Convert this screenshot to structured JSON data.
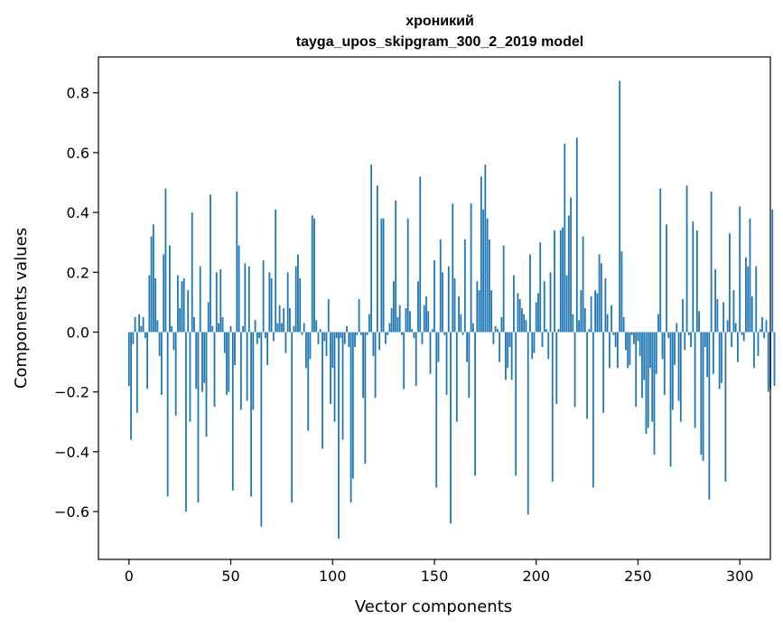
{
  "chart_data": {
    "type": "bar",
    "title": "хроникий",
    "subtitle": "tayga_upos_skipgram_300_2_2019 model",
    "xlabel": "Vector components",
    "ylabel": "Components values",
    "xlim": [
      -15,
      315
    ],
    "ylim": [
      -0.76,
      0.92
    ],
    "xticks": [
      0,
      50,
      100,
      150,
      200,
      250,
      300
    ],
    "xtick_labels": [
      "0",
      "50",
      "100",
      "150",
      "200",
      "250",
      "300"
    ],
    "yticks": [
      -0.6,
      -0.4,
      -0.2,
      0.0,
      0.2,
      0.4,
      0.6,
      0.8
    ],
    "ytick_labels": [
      "−0.6",
      "−0.4",
      "−0.2",
      "0.0",
      "0.2",
      "0.4",
      "0.6",
      "0.8"
    ],
    "grid": false,
    "bar_color": "#1f77b4",
    "values": [
      -0.18,
      -0.36,
      -0.04,
      0.05,
      -0.27,
      0.06,
      0.02,
      0.05,
      -0.02,
      -0.19,
      0.19,
      0.32,
      0.36,
      0.18,
      0.04,
      -0.08,
      -0.21,
      0.26,
      0.48,
      -0.55,
      0.29,
      0.02,
      -0.06,
      -0.28,
      0.19,
      0.08,
      0.17,
      0.18,
      -0.6,
      0.14,
      -0.3,
      0.4,
      0.05,
      -0.19,
      -0.57,
      0.22,
      -0.2,
      -0.17,
      -0.35,
      0.1,
      0.46,
      0.02,
      -0.25,
      0.2,
      0.03,
      0.21,
      0.05,
      -0.07,
      -0.21,
      -0.2,
      0.02,
      -0.53,
      -0.11,
      0.47,
      0.29,
      -0.26,
      0.02,
      0.23,
      -0.23,
      0.22,
      -0.55,
      -0.26,
      0.04,
      -0.04,
      -0.02,
      -0.65,
      0.24,
      -0.02,
      -0.11,
      0.2,
      0.18,
      -0.03,
      0.41,
      0.03,
      0.09,
      0.03,
      0.08,
      -0.07,
      0.2,
      0.08,
      -0.57,
      0.02,
      0.22,
      0.26,
      0.18,
      -0.01,
      0.03,
      -0.12,
      -0.33,
      -0.09,
      0.39,
      0.38,
      0.04,
      -0.04,
      0.01,
      -0.39,
      -0.03,
      -0.08,
      0.11,
      -0.24,
      -0.12,
      -0.3,
      -0.02,
      -0.69,
      -0.02,
      -0.36,
      -0.04,
      0.02,
      -0.05,
      -0.57,
      -0.49,
      -0.05,
      -0.01,
      0.11,
      -0.01,
      -0.22,
      -0.44,
      -0.01,
      0.06,
      0.56,
      -0.08,
      -0.22,
      0.49,
      -0.06,
      0.38,
      0.38,
      -0.04,
      -0.01,
      0.03,
      0.08,
      0.17,
      0.44,
      0.05,
      0.09,
      -0.01,
      -0.19,
      0.08,
      0.38,
      0.07,
      0.01,
      -0.02,
      -0.18,
      0.17,
      0.52,
      -0.04,
      0.09,
      0.12,
      0.07,
      -0.14,
      0.01,
      0.24,
      -0.52,
      -0.1,
      0.31,
      0.2,
      -0.01,
      -0.21,
      0.22,
      -0.64,
      0.43,
      0.18,
      -0.3,
      0.12,
      0.06,
      -0.01,
      0.31,
      -0.1,
      -0.22,
      0.43,
      0.03,
      -0.48,
      0.17,
      0.14,
      0.52,
      0.41,
      0.56,
      0.38,
      0.31,
      0.14,
      -0.04,
      0.02,
      0.01,
      -0.1,
      0.05,
      0.29,
      -0.16,
      -0.12,
      -0.05,
      -0.16,
      0.19,
      -0.48,
      0.13,
      0.11,
      0.08,
      0.06,
      0.04,
      -0.61,
      0.26,
      -0.09,
      -0.07,
      0.1,
      0.13,
      0.3,
      -0.05,
      0.17,
      0.01,
      -0.09,
      0.2,
      -0.5,
      0.34,
      -0.24,
      0.01,
      0.34,
      0.35,
      0.63,
      0.19,
      0.39,
      0.45,
      0.06,
      -0.25,
      0.65,
      0.04,
      0.14,
      0.32,
      0.08,
      -0.29,
      0.01,
      0.12,
      -0.52,
      0.14,
      0.13,
      0.26,
      0.23,
      -0.27,
      0.18,
      0.06,
      -0.12,
      0.09,
      -0.01,
      -0.05,
      -0.12,
      0.84,
      0.27,
      0.05,
      -0.06,
      -0.12,
      -0.11,
      -0.01,
      -0.04,
      -0.25,
      -0.03,
      -0.08,
      -0.22,
      -0.16,
      -0.34,
      -0.32,
      -0.12,
      -0.3,
      -0.41,
      -0.14,
      0.06,
      0.48,
      -0.09,
      -0.21,
      0.36,
      -0.02,
      -0.45,
      -0.26,
      -0.11,
      0.03,
      -0.23,
      -0.3,
      0.11,
      -0.06,
      0.49,
      -0.01,
      -0.05,
      0.37,
      -0.32,
      0.34,
      0.07,
      -0.41,
      -0.43,
      -0.05,
      -0.15,
      -0.56,
      0.47,
      -0.14,
      0.21,
      0.11,
      -0.19,
      -0.17,
      0.1,
      -0.5,
      0.04,
      0.33,
      -0.05,
      0.14,
      0.03,
      -0.1,
      0.42,
      -0.01,
      -0.03,
      0.25,
      0.22,
      0.38,
      0.12,
      -0.12,
      0.22,
      -0.08,
      0.01,
      0.05,
      -0.02,
      0.04,
      -0.2,
      -0.19,
      0.41,
      -0.18
    ]
  }
}
